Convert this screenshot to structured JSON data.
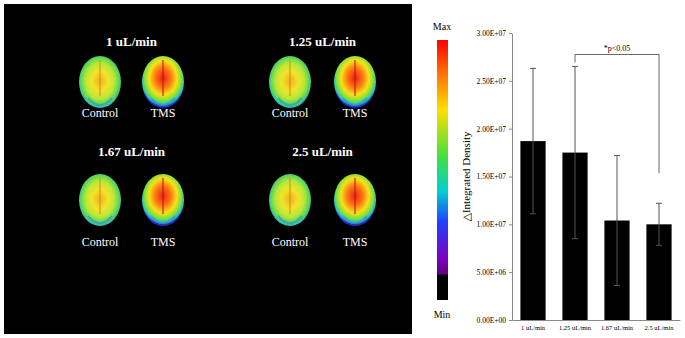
{
  "chart_data": {
    "type": "bar",
    "y_label": "△Integrated Density",
    "categories": [
      "1 uL/min",
      "1.25 uL/min",
      "1.67 uL/min",
      "2.5 uL/min"
    ],
    "values": [
      18700000,
      17500000,
      10400000,
      10000000
    ],
    "errors": [
      7600000,
      9000000,
      6800000,
      2200000
    ],
    "color": "#000000",
    "ylim": [
      0,
      30000000
    ],
    "yticks": [
      {
        "value": 0,
        "label": "0.00E+00"
      },
      {
        "value": 5000000,
        "label": "5.00E+06"
      },
      {
        "value": 10000000,
        "label": "1.00E+07"
      },
      {
        "value": 15000000,
        "label": "1.50E+07"
      },
      {
        "value": 20000000,
        "label": "2.00E+07"
      },
      {
        "value": 25000000,
        "label": "2.50E+07"
      },
      {
        "value": 30000000,
        "label": "3.00E+07"
      }
    ],
    "grid": false,
    "annotations": [
      {
        "text": "*p<0.05",
        "between": [
          "1.25 uL/min",
          "2.5 uL/min"
        ]
      }
    ]
  },
  "image_panel": {
    "groups": [
      {
        "label": "1 uL/min",
        "items": [
          "Control",
          "TMS"
        ]
      },
      {
        "label": "1.25 uL/min",
        "items": [
          "Control",
          "TMS"
        ]
      },
      {
        "label": "1.67 uL/min",
        "items": [
          "Control",
          "TMS"
        ]
      },
      {
        "label": "2.5 uL/min",
        "items": [
          "Control",
          "TMS"
        ]
      }
    ],
    "colorbar": {
      "max_label": "Max",
      "min_label": "Min"
    }
  }
}
